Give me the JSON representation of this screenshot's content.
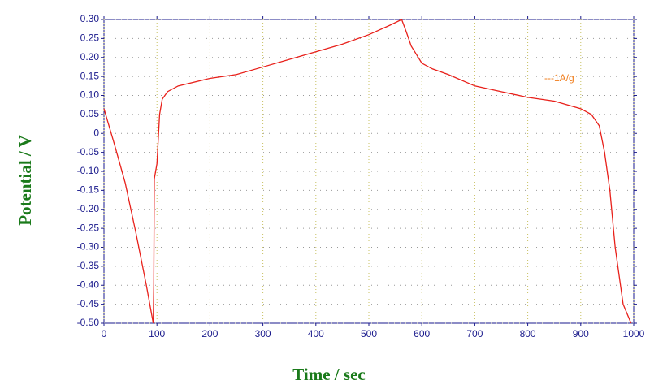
{
  "chart_data": {
    "type": "line",
    "x_label": "Time / sec",
    "y_label": "Potential / V",
    "series": [
      {
        "name": "---1A/g",
        "color": "#e8201a",
        "x": [
          0,
          20,
          40,
          60,
          80,
          93,
          94,
          95,
          100,
          105,
          110,
          120,
          140,
          200,
          250,
          300,
          350,
          400,
          450,
          500,
          540,
          562,
          570,
          580,
          600,
          620,
          650,
          700,
          750,
          800,
          850,
          900,
          920,
          935,
          945,
          955,
          965,
          980,
          995
        ],
        "values": [
          0.065,
          -0.03,
          -0.13,
          -0.26,
          -0.4,
          -0.5,
          -0.4,
          -0.12,
          -0.08,
          0.05,
          0.09,
          0.11,
          0.125,
          0.145,
          0.155,
          0.175,
          0.195,
          0.215,
          0.235,
          0.26,
          0.285,
          0.3,
          0.27,
          0.23,
          0.185,
          0.17,
          0.155,
          0.125,
          0.11,
          0.095,
          0.085,
          0.065,
          0.05,
          0.02,
          -0.05,
          -0.15,
          -0.3,
          -0.45,
          -0.5
        ]
      }
    ],
    "legend_color": "#f07c1a",
    "xlim": [
      0,
      1000
    ],
    "xticks": [
      0,
      100,
      200,
      300,
      400,
      500,
      600,
      700,
      800,
      900,
      1000
    ],
    "ylim": [
      -0.5,
      0.3
    ],
    "yticks": [
      {
        "value": 0.3,
        "label": "0.30"
      },
      0.25,
      {
        "value": 0.2,
        "label": "0.20"
      },
      0.15,
      {
        "value": 0.1,
        "label": "0.10"
      },
      0.05,
      0,
      -0.05,
      {
        "value": -0.1,
        "label": "-0.10"
      },
      -0.15,
      {
        "value": -0.2,
        "label": "-0.20"
      },
      -0.25,
      {
        "value": -0.3,
        "label": "-0.30"
      },
      -0.35,
      {
        "value": -0.4,
        "label": "-0.40"
      },
      -0.45,
      {
        "value": -0.5,
        "label": "-0.50"
      }
    ],
    "grid": true
  }
}
